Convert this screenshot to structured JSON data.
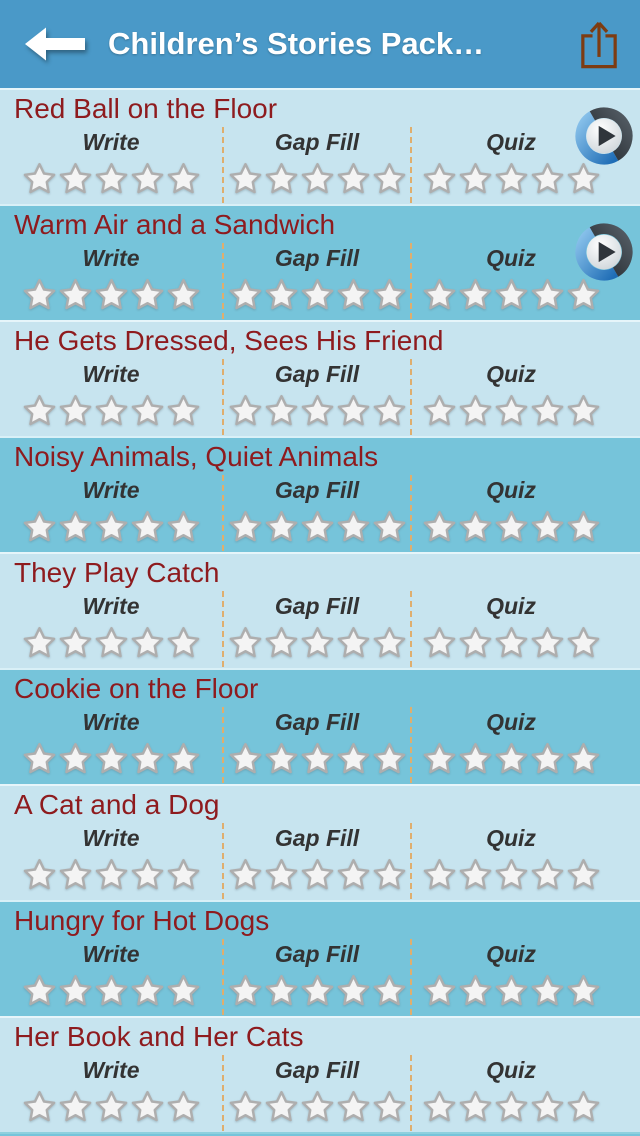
{
  "header": {
    "title": "Children’s Stories Pack…",
    "back_icon": "back-arrow-icon",
    "share_icon": "share-icon"
  },
  "activity_columns": [
    {
      "label": "Write"
    },
    {
      "label": "Gap Fill"
    },
    {
      "label": "Quiz"
    }
  ],
  "rating": {
    "max_stars": 5
  },
  "stories": [
    {
      "title": "Red Ball on the Floor",
      "has_play_button": true,
      "ratings": {
        "write": 0,
        "gap_fill": 0,
        "quiz": 0
      }
    },
    {
      "title": "Warm Air and a Sandwich",
      "has_play_button": true,
      "ratings": {
        "write": 0,
        "gap_fill": 0,
        "quiz": 0
      }
    },
    {
      "title": "He Gets Dressed, Sees His Friend",
      "has_play_button": false,
      "ratings": {
        "write": 0,
        "gap_fill": 0,
        "quiz": 0
      }
    },
    {
      "title": "Noisy Animals, Quiet Animals",
      "has_play_button": false,
      "ratings": {
        "write": 0,
        "gap_fill": 0,
        "quiz": 0
      }
    },
    {
      "title": "They Play Catch",
      "has_play_button": false,
      "ratings": {
        "write": 0,
        "gap_fill": 0,
        "quiz": 0
      }
    },
    {
      "title": "Cookie on the Floor",
      "has_play_button": false,
      "ratings": {
        "write": 0,
        "gap_fill": 0,
        "quiz": 0
      }
    },
    {
      "title": "A Cat and a Dog",
      "has_play_button": false,
      "ratings": {
        "write": 0,
        "gap_fill": 0,
        "quiz": 0
      }
    },
    {
      "title": "Hungry for Hot Dogs",
      "has_play_button": false,
      "ratings": {
        "write": 0,
        "gap_fill": 0,
        "quiz": 0
      }
    },
    {
      "title": "Her Book and Her Cats",
      "has_play_button": false,
      "ratings": {
        "write": 0,
        "gap_fill": 0,
        "quiz": 0
      }
    }
  ],
  "colors": {
    "header_bg": "#4a99c8",
    "row_light": "#c7e4ef",
    "row_dark": "#76c4da",
    "story_title": "#8e1b1e",
    "column_label": "#333333",
    "separator": "#dfae6e",
    "share_icon": "#7d3c12"
  }
}
